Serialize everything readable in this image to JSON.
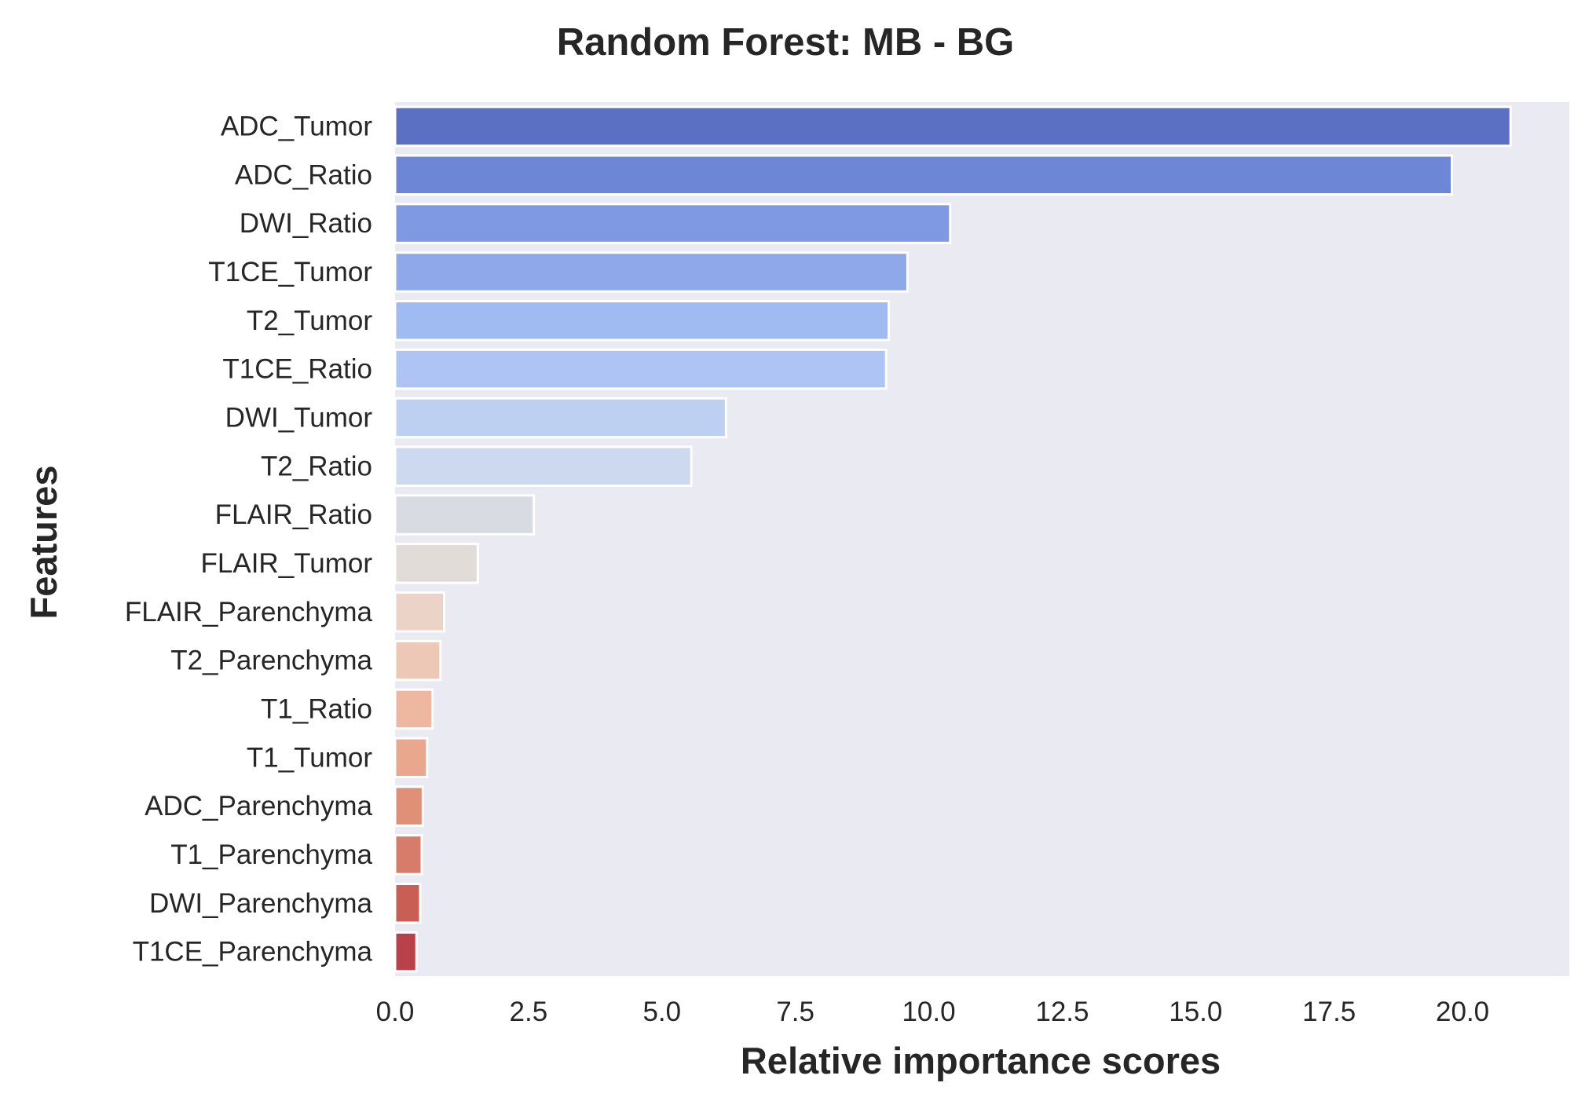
{
  "chart_data": {
    "type": "bar",
    "orientation": "horizontal",
    "title": "Random Forest: MB - BG",
    "xlabel": "Relative importance scores",
    "ylabel": "Features",
    "xlim": [
      0,
      22
    ],
    "xticks": [
      0.0,
      2.5,
      5.0,
      7.5,
      10.0,
      12.5,
      15.0,
      17.5,
      20.0
    ],
    "xtick_labels": [
      "0.0",
      "2.5",
      "5.0",
      "7.5",
      "10.0",
      "12.5",
      "15.0",
      "17.5",
      "20.0"
    ],
    "grid": false,
    "background_color": "#eaeaf2",
    "categories": [
      "ADC_Tumor",
      "ADC_Ratio",
      "DWI_Ratio",
      "T1CE_Tumor",
      "T2_Tumor",
      "T1CE_Ratio",
      "DWI_Tumor",
      "T2_Ratio",
      "FLAIR_Ratio",
      "FLAIR_Tumor",
      "FLAIR_Parenchyma",
      "T2_Parenchyma",
      "T1_Ratio",
      "T1_Tumor",
      "ADC_Parenchyma",
      "T1_Parenchyma",
      "DWI_Parenchyma",
      "T1CE_Parenchyma"
    ],
    "values": [
      20.9,
      19.8,
      10.4,
      9.6,
      9.25,
      9.2,
      6.2,
      5.55,
      2.6,
      1.55,
      0.92,
      0.85,
      0.7,
      0.6,
      0.52,
      0.5,
      0.47,
      0.4
    ],
    "colors": [
      "#5b70c3",
      "#6d86d5",
      "#7f99e3",
      "#8fa8ea",
      "#a0baf2",
      "#adc4f5",
      "#bdd0f2",
      "#ccd9ee",
      "#d9dbe3",
      "#e2dcd8",
      "#ecd3c8",
      "#eec8b6",
      "#eeb8a0",
      "#e9a78e",
      "#e19078",
      "#d77c6b",
      "#c95e55",
      "#b8414a"
    ]
  }
}
